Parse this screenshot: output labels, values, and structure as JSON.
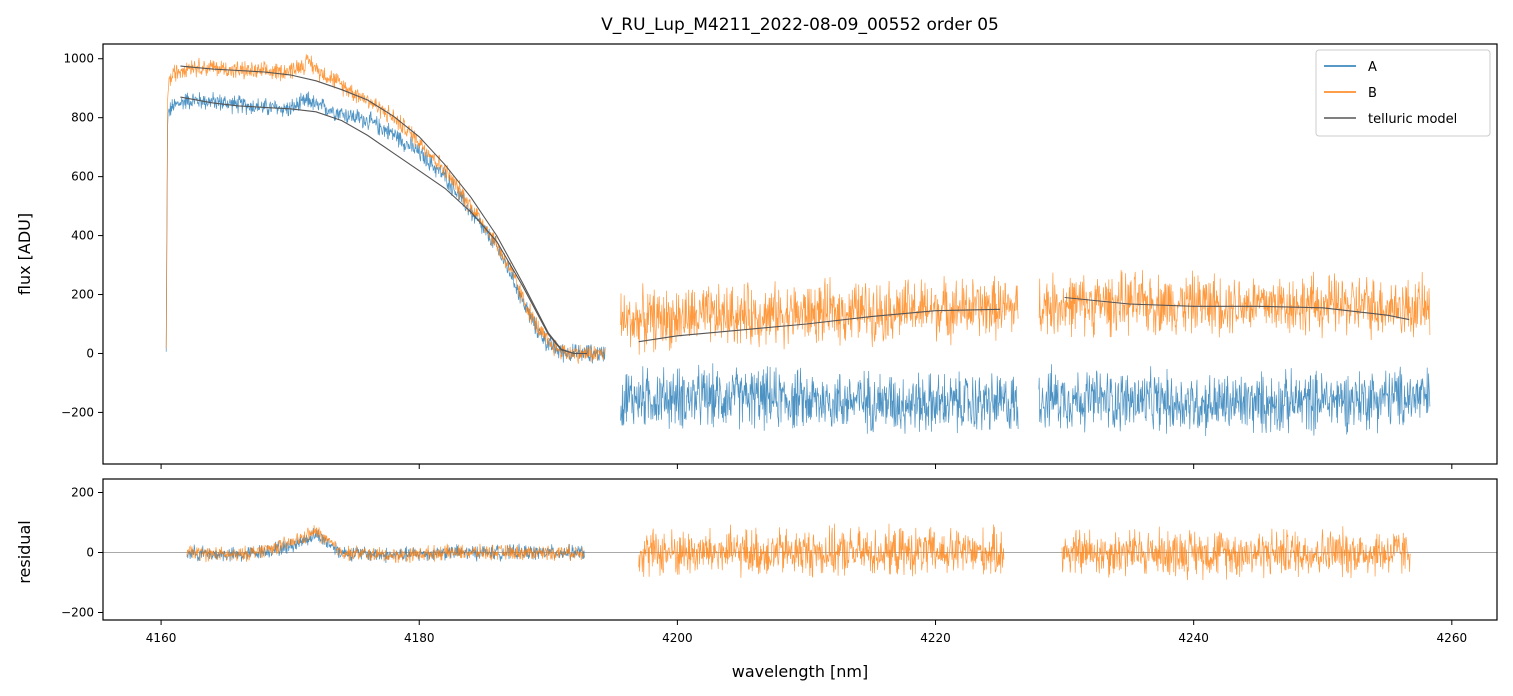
{
  "chart_data": [
    {
      "type": "line",
      "panel": "top",
      "title": "V_RU_Lup_M4211_2022-08-09_00552  order 05",
      "xlabel": "",
      "ylabel": "flux [ADU]",
      "xlim": [
        4155.5,
        4263.5
      ],
      "ylim": [
        -375,
        1050
      ],
      "yticks": [
        -200,
        0,
        200,
        400,
        600,
        800,
        1000
      ],
      "ytick_labels": [
        "−200",
        "0",
        "200",
        "400",
        "600",
        "800",
        "1000"
      ],
      "xticks": [
        4160,
        4180,
        4200,
        4220,
        4240,
        4260
      ],
      "legend": {
        "location": "top-right",
        "entries": [
          {
            "label": "A",
            "color": "#1f77b4"
          },
          {
            "label": "B",
            "color": "#ff7f0e"
          },
          {
            "label": "telluric model",
            "color": "#555555"
          }
        ]
      },
      "series": [
        {
          "name": "A",
          "color": "#1f77b4",
          "segments": [
            {
              "x": [
                4160.4,
                4160.5,
                4160.6,
                4161.0,
                4162.0,
                4164.0,
                4166.0,
                4168.0,
                4170.0,
                4171.5,
                4172.0,
                4173.0,
                4174.0,
                4176.0,
                4178.0,
                4180.0,
                4181.0,
                4182.0,
                4183.0,
                4184.0,
                4185.0,
                4186.0,
                4187.0,
                4188.0,
                4189.0,
                4190.0,
                4191.0,
                4192.0,
                4193.0,
                4194.4
              ],
              "y": [
                0,
                790,
                820,
                840,
                860,
                855,
                845,
                835,
                830,
                860,
                840,
                830,
                815,
                790,
                745,
                680,
                640,
                600,
                540,
                480,
                420,
                360,
                280,
                180,
                90,
                30,
                5,
                0,
                0,
                0
              ]
            },
            {
              "x": [
                4195.6,
                4200.0,
                4205.0,
                4210.0,
                4215.0,
                4220.0,
                4225.0,
                4226.4
              ],
              "y": [
                -150,
                -150,
                -150,
                -160,
                -160,
                -170,
                -170,
                -170
              ]
            },
            {
              "x": [
                4228.0,
                4235.0,
                4240.0,
                4245.0,
                4250.0,
                4255.0,
                4258.3
              ],
              "y": [
                -150,
                -160,
                -170,
                -170,
                -160,
                -150,
                -150
              ]
            }
          ]
        },
        {
          "name": "B",
          "color": "#ff7f0e",
          "segments": [
            {
              "x": [
                4160.4,
                4160.5,
                4160.6,
                4161.0,
                4162.0,
                4164.0,
                4166.0,
                4168.0,
                4170.0,
                4171.5,
                4172.0,
                4173.0,
                4174.0,
                4176.0,
                4178.0,
                4180.0,
                4181.0,
                4182.0,
                4183.0,
                4184.0,
                4185.0,
                4186.0,
                4187.0,
                4188.0,
                4189.0,
                4190.0,
                4191.0,
                4192.0,
                4193.0,
                4194.4
              ],
              "y": [
                0,
                880,
                920,
                950,
                975,
                970,
                960,
                955,
                960,
                990,
                965,
                940,
                910,
                860,
                800,
                720,
                670,
                620,
                560,
                500,
                440,
                370,
                290,
                190,
                100,
                35,
                8,
                0,
                0,
                0
              ]
            },
            {
              "x": [
                4195.6,
                4200.0,
                4205.0,
                4210.0,
                4215.0,
                4220.0,
                4225.0,
                4226.4
              ],
              "y": [
                110,
                120,
                130,
                135,
                145,
                150,
                155,
                150
              ]
            },
            {
              "x": [
                4228.0,
                4235.0,
                4240.0,
                4245.0,
                4250.0,
                4255.0,
                4258.3
              ],
              "y": [
                165,
                170,
                170,
                170,
                165,
                160,
                150
              ]
            }
          ]
        },
        {
          "name": "telluric model",
          "color": "#555555",
          "segments": [
            {
              "x": [
                4161.5,
                4164.0,
                4166.0,
                4168.0,
                4170.0,
                4172.0,
                4174.0,
                4176.0,
                4178.0,
                4180.0,
                4182.0,
                4184.0,
                4186.0,
                4188.0,
                4190.0,
                4191.0,
                4192.0,
                4193.0
              ],
              "y": [
                975,
                965,
                960,
                955,
                945,
                925,
                895,
                860,
                805,
                735,
                640,
                530,
                400,
                240,
                70,
                15,
                0,
                0
              ]
            },
            {
              "x": [
                4161.5,
                4164.0,
                4166.0,
                4168.0,
                4170.0,
                4172.0,
                4174.0,
                4176.0,
                4178.0,
                4180.0,
                4182.0,
                4184.0,
                4186.0,
                4188.0,
                4190.0,
                4191.0,
                4192.0,
                4193.0
              ],
              "y": [
                870,
                850,
                840,
                835,
                830,
                820,
                790,
                740,
                680,
                620,
                560,
                480,
                380,
                230,
                65,
                12,
                0,
                0
              ]
            },
            {
              "x": [
                4197.0,
                4200.0,
                4205.0,
                4210.0,
                4215.0,
                4220.0,
                4225.0
              ],
              "y": [
                40,
                60,
                80,
                100,
                125,
                145,
                150
              ]
            },
            {
              "x": [
                4230.0,
                4235.0,
                4240.0,
                4245.0,
                4250.0,
                4255.0,
                4256.7
              ],
              "y": [
                190,
                168,
                160,
                160,
                155,
                130,
                115
              ]
            }
          ]
        }
      ]
    },
    {
      "type": "line",
      "panel": "bottom",
      "title": "",
      "xlabel": "wavelength [nm]",
      "ylabel": "residual",
      "xlim": [
        4155.5,
        4263.5
      ],
      "ylim": [
        -225,
        245
      ],
      "yticks": [
        -200,
        0,
        200
      ],
      "ytick_labels": [
        "−200",
        "0",
        "200"
      ],
      "xticks": [
        4160,
        4180,
        4200,
        4220,
        4240,
        4260
      ],
      "xtick_labels": [
        "4160",
        "4180",
        "4200",
        "4220",
        "4240",
        "4260"
      ],
      "reference_line_y": 0,
      "series": [
        {
          "name": "A",
          "color": "#1f77b4",
          "segments": [
            {
              "x": [
                4162.0,
                4166.0,
                4170.0,
                4172.0,
                4174.0,
                4178.0,
                4182.0,
                4186.0,
                4190.0,
                4192.8
              ],
              "y": [
                0,
                -10,
                20,
                60,
                0,
                -10,
                0,
                0,
                0,
                0
              ]
            }
          ]
        },
        {
          "name": "B",
          "color": "#ff7f0e",
          "segments": [
            {
              "x": [
                4162.0,
                4166.0,
                4170.0,
                4172.0,
                4174.0,
                4178.0,
                4182.0,
                4186.0,
                4190.0,
                4192.8
              ],
              "y": [
                0,
                -10,
                30,
                70,
                0,
                -10,
                0,
                0,
                0,
                0
              ]
            },
            {
              "x": [
                4197.0,
                4205.0,
                4215.0,
                4225.3
              ],
              "y": [
                0,
                0,
                0,
                0
              ]
            },
            {
              "x": [
                4229.8,
                4240.0,
                4250.0,
                4256.8
              ],
              "y": [
                0,
                0,
                0,
                0
              ]
            }
          ]
        }
      ]
    }
  ]
}
